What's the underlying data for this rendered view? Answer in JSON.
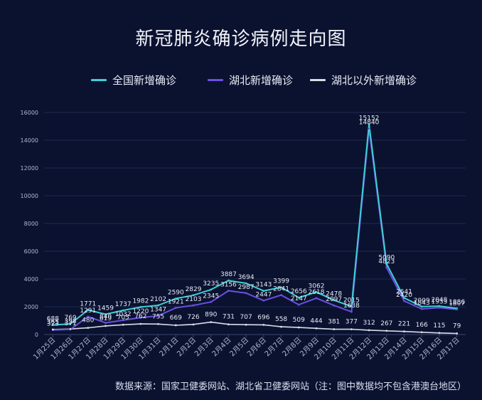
{
  "title": "新冠肺炎确诊病例走向图",
  "source": "数据来源：国家卫健委网站、湖北省卫健委网站（注：图中数据均不包含港澳台地区）",
  "colors": {
    "background": "#0b1230",
    "grid": "#1f2a4d",
    "axis_text": "#aeb6cc",
    "label_text": "#e6e9f3"
  },
  "chart_data": {
    "type": "line",
    "title": "新冠肺炎确诊病例走向图",
    "xlabel": "",
    "ylabel": "",
    "ylim": [
      0,
      16000
    ],
    "yticks": [
      0,
      2000,
      4000,
      6000,
      8000,
      10000,
      12000,
      14000,
      16000
    ],
    "grid": true,
    "legend_position": "top-center",
    "categories": [
      "1月25日",
      "1月26日",
      "1月27日",
      "1月28日",
      "1月29日",
      "1月30日",
      "1月31日",
      "2月1日",
      "2月2日",
      "2月3日",
      "2月4日",
      "2月5日",
      "2月6日",
      "2月7日",
      "2月8日",
      "2月9日",
      "2月10日",
      "2月11日",
      "2月12日",
      "2月13日",
      "2月14日",
      "2月15日",
      "2月16日",
      "2月17日"
    ],
    "series": [
      {
        "name": "全国新增确诊",
        "color": "#3fd0d4",
        "values": [
          688,
          769,
          1771,
          1459,
          1737,
          1982,
          2102,
          2590,
          2829,
          3235,
          3887,
          3694,
          3143,
          3399,
          2656,
          3062,
          2478,
          2015,
          15152,
          5090,
          2641,
          2009,
          2048,
          1886
        ],
        "labels": [
          "688",
          "769",
          "1771",
          "1459",
          "1737",
          "1982",
          "2102",
          "2590",
          "2829",
          "3235",
          "3887",
          "3694",
          "3143",
          "3399",
          "2656",
          "3062",
          "2478",
          "2015",
          "15152",
          "5090",
          "2641",
          "2009",
          "2048",
          "1886"
        ]
      },
      {
        "name": "湖北新增确诊",
        "color": "#6a4fe0",
        "values": [
          323,
          371,
          1291,
          840,
          1032,
          1220,
          1347,
          1921,
          2103,
          2345,
          3156,
          2987,
          2447,
          2841,
          2147,
          2618,
          2097,
          1638,
          14840,
          4823,
          2420,
          1843,
          1933,
          1807
        ],
        "labels": [
          "323",
          "371",
          "1291",
          "840",
          "1032",
          "1220",
          "1347",
          "1921",
          "2103",
          "2345",
          "3156",
          "2987",
          "2447",
          "2841",
          "2147",
          "2618",
          "2097",
          "1638",
          "14840",
          "4823",
          "2420",
          "1843",
          "1933",
          "1807"
        ]
      },
      {
        "name": "湖北以外新增确诊",
        "color": "#d9dde6",
        "values": [
          365,
          398,
          480,
          619,
          705,
          762,
          755,
          669,
          726,
          890,
          731,
          707,
          696,
          558,
          509,
          444,
          381,
          377,
          312,
          267,
          221,
          166,
          115,
          79
        ],
        "labels": [
          "365",
          "398",
          "480",
          "619",
          "705",
          "762",
          "755",
          "669",
          "726",
          "890",
          "731",
          "707",
          "696",
          "558",
          "509",
          "444",
          "381",
          "377",
          "312",
          "267",
          "221",
          "166",
          "115",
          "79"
        ]
      }
    ]
  }
}
